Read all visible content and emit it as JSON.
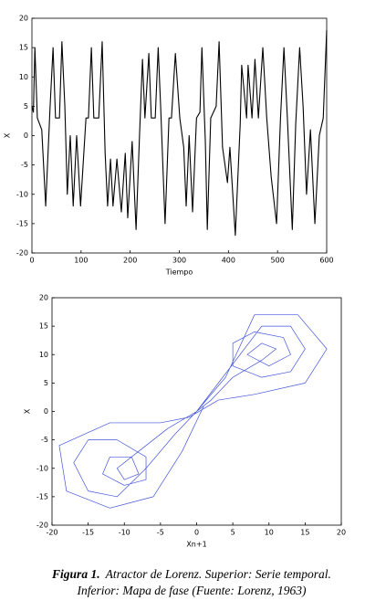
{
  "chart_data": [
    {
      "type": "line",
      "xlabel": "Tiempo",
      "ylabel": "X",
      "x": [
        0,
        3,
        6,
        11,
        20,
        28,
        37,
        43,
        48,
        56,
        61,
        67,
        72,
        78,
        84,
        91,
        99,
        110,
        115,
        121,
        126,
        136,
        143,
        149,
        154,
        160,
        165,
        173,
        182,
        190,
        195,
        204,
        212,
        219,
        225,
        230,
        238,
        243,
        251,
        257,
        262,
        271,
        279,
        284,
        292,
        301,
        309,
        314,
        320,
        327,
        335,
        342,
        346,
        353,
        357,
        364,
        375,
        381,
        388,
        398,
        403,
        414,
        424,
        427,
        437,
        440,
        448,
        454,
        461,
        470,
        478,
        487,
        498,
        506,
        513,
        520,
        530,
        537,
        545,
        552,
        559,
        567,
        576,
        585,
        593,
        600
      ],
      "series": [
        {
          "color": "#000000",
          "values": [
            5,
            4,
            15,
            3,
            1,
            -12,
            5,
            15,
            3,
            3,
            16,
            5,
            -10,
            0,
            -12,
            0,
            -12,
            3,
            3,
            15,
            3,
            3,
            16,
            -3,
            -12,
            -4,
            -12,
            -4,
            -13,
            -3,
            -14,
            -1,
            -16,
            0,
            13,
            3,
            14,
            3,
            3,
            15,
            5,
            -15,
            3,
            3,
            14,
            3,
            -2,
            -12,
            0,
            -13,
            3,
            4,
            15,
            -1,
            -16,
            3,
            5,
            16,
            -2,
            -8,
            -2,
            -17,
            2,
            12,
            3,
            12,
            3,
            13,
            3,
            15,
            3,
            -7,
            -15,
            3,
            15,
            3,
            -16,
            2,
            15,
            5,
            -10,
            1,
            -15,
            0,
            3,
            18
          ]
        }
      ],
      "xlim": [
        0,
        600
      ],
      "xticks": [
        0,
        100,
        200,
        300,
        400,
        500,
        600
      ],
      "ylim": [
        -20,
        20
      ],
      "yticks": [
        -20,
        -15,
        -10,
        -5,
        0,
        5,
        10,
        15,
        20
      ],
      "grid": false
    },
    {
      "type": "line",
      "xlabel": "Xn+1",
      "ylabel": "X",
      "x": [
        0,
        3,
        6,
        9,
        13,
        15,
        13,
        9,
        5,
        5,
        8,
        12,
        13,
        10,
        7,
        9,
        11,
        9,
        5,
        2,
        0,
        -3,
        -7,
        -11,
        -15,
        -17,
        -15,
        -11,
        -7,
        -7,
        -10,
        -13,
        -12,
        -9,
        -8,
        -10,
        -11,
        -8,
        -4,
        0,
        4,
        8,
        14,
        18,
        15,
        8,
        3,
        -1,
        -5,
        -12,
        -19,
        -18,
        -12,
        -6,
        -2,
        1
      ],
      "series": [
        {
          "color": "#4455dd",
          "values": [
            0,
            5,
            10,
            15,
            15,
            11,
            7,
            6,
            8,
            12,
            14,
            13,
            10,
            8,
            10,
            12,
            11,
            9,
            6,
            2,
            0,
            -4,
            -10,
            -15,
            -14,
            -9,
            -5,
            -5,
            -8,
            -12,
            -13,
            -11,
            -8,
            -8,
            -11,
            -12,
            -10,
            -7,
            -3,
            0,
            6,
            17,
            17,
            11,
            5,
            3,
            2,
            -1,
            -2,
            -2,
            -6,
            -14,
            -17,
            -15,
            -7,
            1
          ]
        }
      ],
      "xlim": [
        -20,
        20
      ],
      "xticks": [
        -20,
        -15,
        -10,
        -5,
        0,
        5,
        10,
        15,
        20
      ],
      "ylim": [
        -20,
        20
      ],
      "yticks": [
        -20,
        -15,
        -10,
        -5,
        0,
        5,
        10,
        15,
        20
      ],
      "grid": false
    }
  ],
  "caption": {
    "label": "Figura 1.",
    "line1": "Atractor de Lorenz.  Superior: Serie temporal.",
    "line2": "Inferior: Mapa de fase (Fuente: Lorenz, 1963)"
  }
}
